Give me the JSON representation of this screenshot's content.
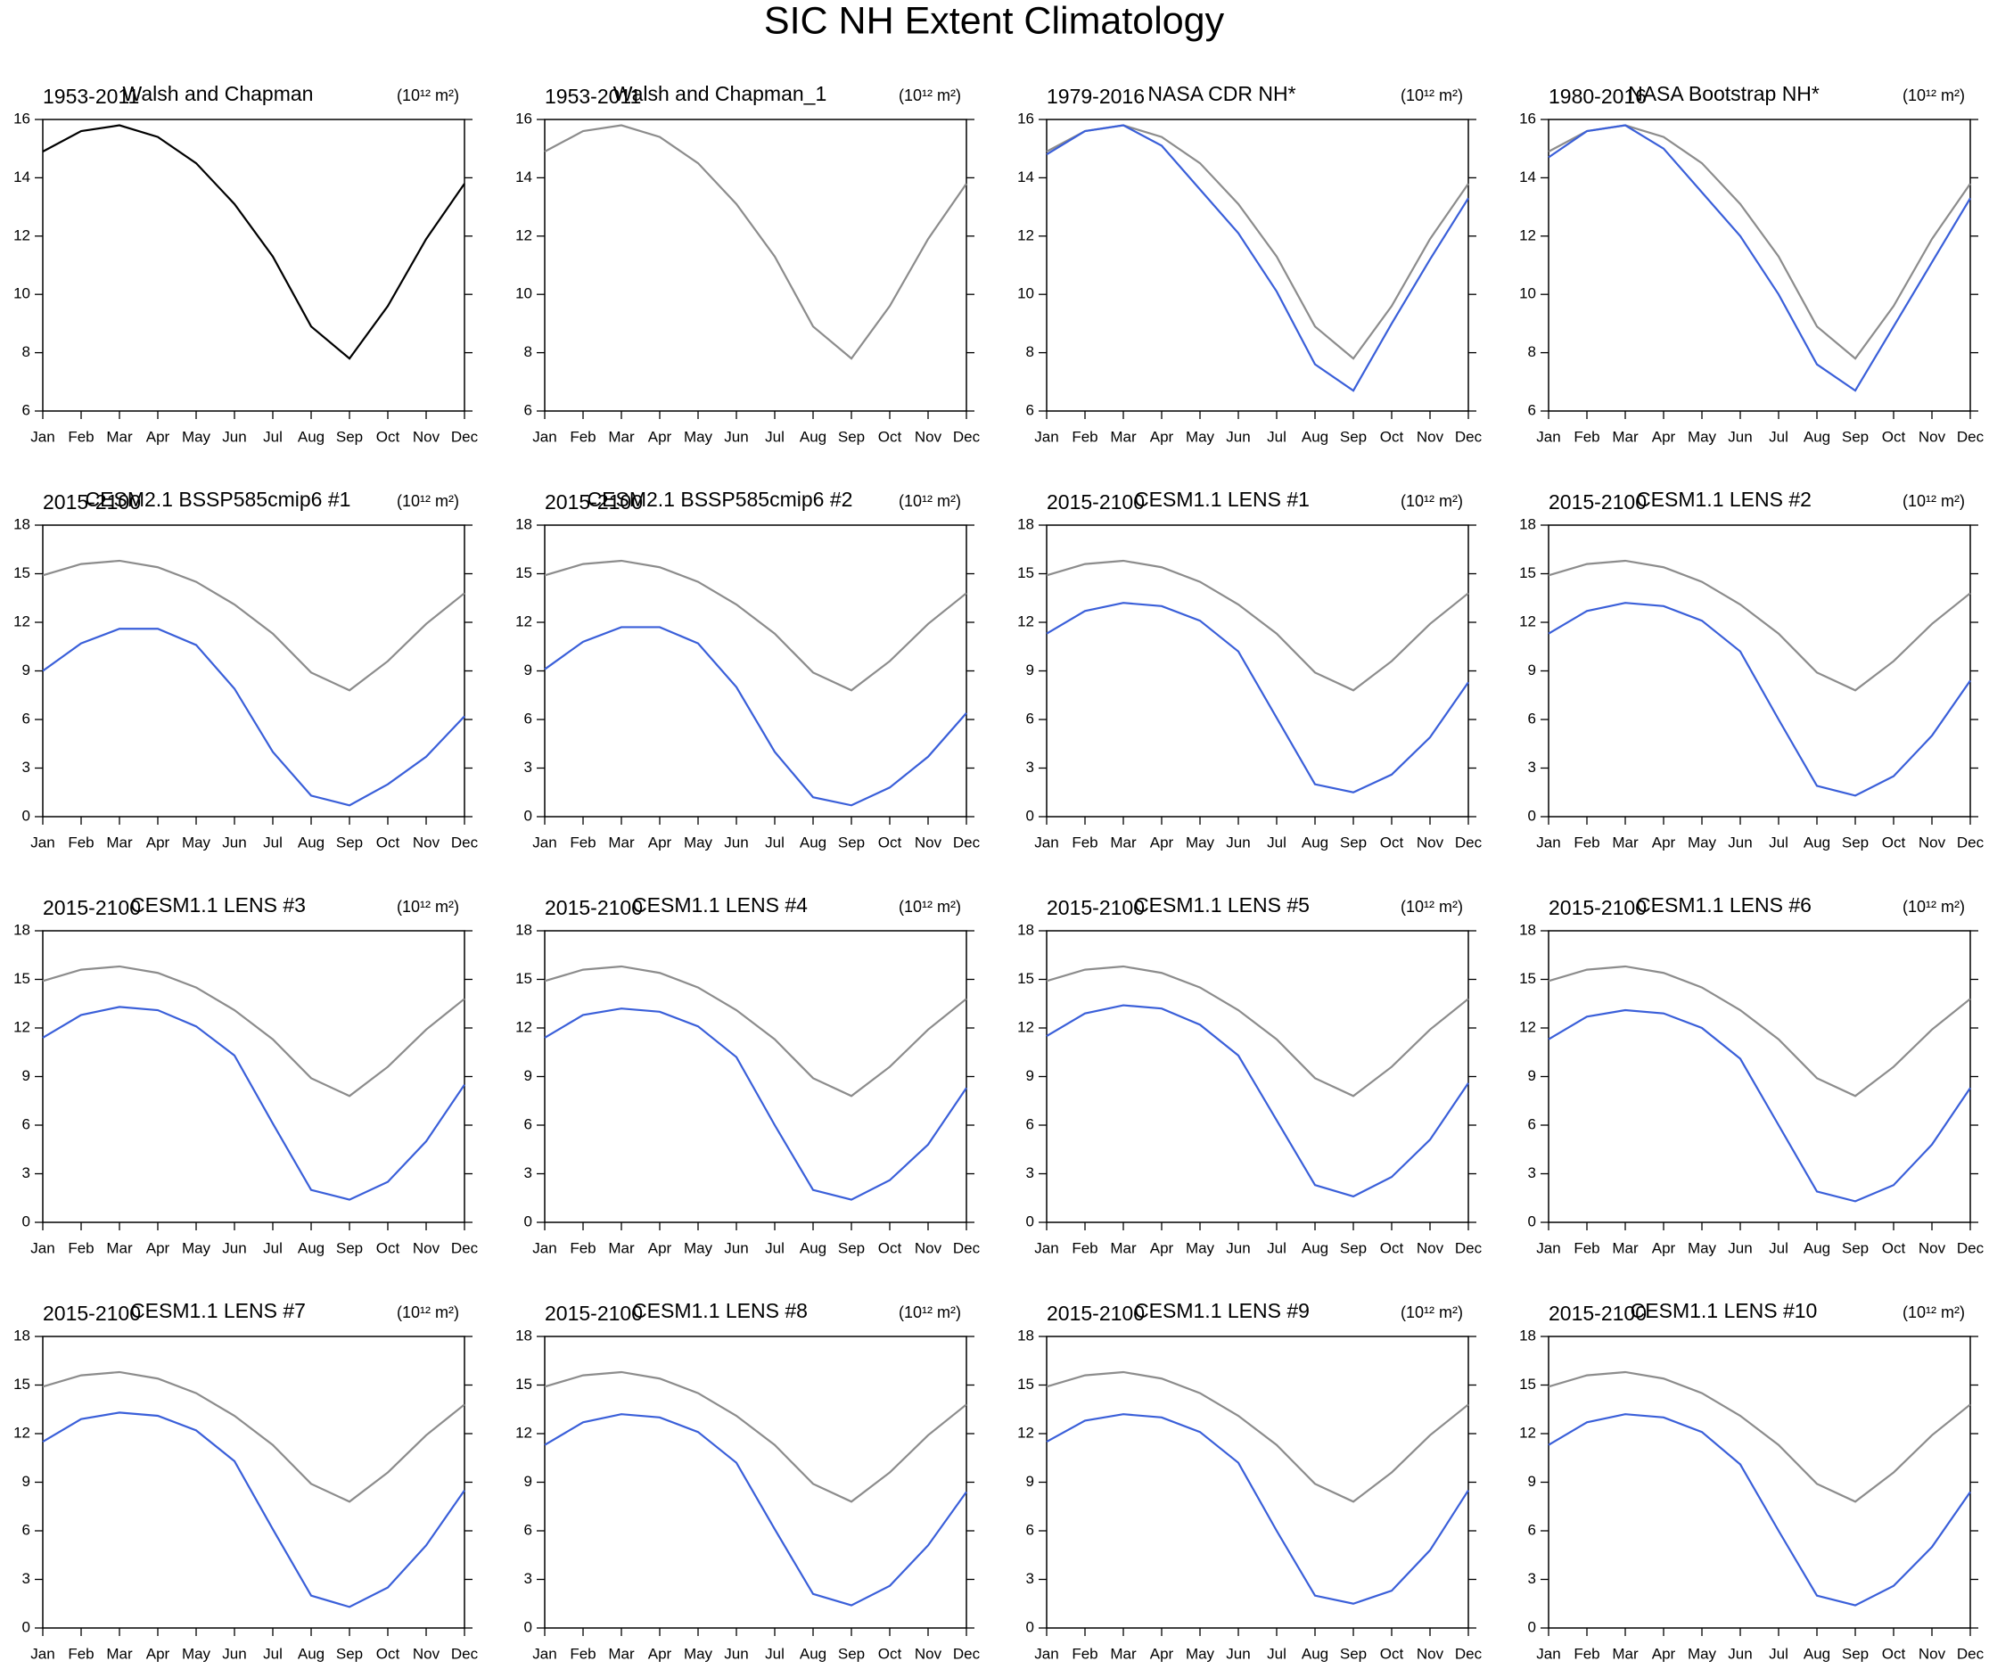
{
  "title": "SIC NH Extent Climatology",
  "chart_data": [
    {
      "type": "line",
      "period": "1953-2011",
      "title": "Walsh and Chapman",
      "units": "(10¹² m²)",
      "categories": [
        "Jan",
        "Feb",
        "Mar",
        "Apr",
        "May",
        "Jun",
        "Jul",
        "Aug",
        "Sep",
        "Oct",
        "Nov",
        "Dec"
      ],
      "ylim": [
        6,
        16
      ],
      "yticks": [
        6,
        8,
        10,
        12,
        14,
        16
      ],
      "series": [
        {
          "color": "#000000",
          "values": [
            14.9,
            15.6,
            15.8,
            15.4,
            14.5,
            13.1,
            11.3,
            8.9,
            7.8,
            9.6,
            11.9,
            13.8
          ]
        }
      ]
    },
    {
      "type": "line",
      "period": "1953-2011",
      "title": "Walsh and Chapman_1",
      "units": "(10¹² m²)",
      "categories": [
        "Jan",
        "Feb",
        "Mar",
        "Apr",
        "May",
        "Jun",
        "Jul",
        "Aug",
        "Sep",
        "Oct",
        "Nov",
        "Dec"
      ],
      "ylim": [
        6,
        16
      ],
      "yticks": [
        6,
        8,
        10,
        12,
        14,
        16
      ],
      "series": [
        {
          "color": "#8c8c8c",
          "values": [
            14.9,
            15.6,
            15.8,
            15.4,
            14.5,
            13.1,
            11.3,
            8.9,
            7.8,
            9.6,
            11.9,
            13.8
          ]
        }
      ]
    },
    {
      "type": "line",
      "period": "1979-2016",
      "title": "NASA CDR NH*",
      "units": "(10¹² m²)",
      "categories": [
        "Jan",
        "Feb",
        "Mar",
        "Apr",
        "May",
        "Jun",
        "Jul",
        "Aug",
        "Sep",
        "Oct",
        "Nov",
        "Dec"
      ],
      "ylim": [
        6,
        16
      ],
      "yticks": [
        6,
        8,
        10,
        12,
        14,
        16
      ],
      "series": [
        {
          "color": "#8c8c8c",
          "values": [
            14.9,
            15.6,
            15.8,
            15.4,
            14.5,
            13.1,
            11.3,
            8.9,
            7.8,
            9.6,
            11.9,
            13.8
          ]
        },
        {
          "color": "#3a5fd9",
          "values": [
            14.8,
            15.6,
            15.8,
            15.1,
            13.6,
            12.1,
            10.1,
            7.6,
            6.7,
            9.0,
            11.2,
            13.3
          ]
        }
      ]
    },
    {
      "type": "line",
      "period": "1980-2016",
      "title": "NASA Bootstrap NH*",
      "units": "(10¹² m²)",
      "categories": [
        "Jan",
        "Feb",
        "Mar",
        "Apr",
        "May",
        "Jun",
        "Jul",
        "Aug",
        "Sep",
        "Oct",
        "Nov",
        "Dec"
      ],
      "ylim": [
        6,
        16
      ],
      "yticks": [
        6,
        8,
        10,
        12,
        14,
        16
      ],
      "series": [
        {
          "color": "#8c8c8c",
          "values": [
            14.9,
            15.6,
            15.8,
            15.4,
            14.5,
            13.1,
            11.3,
            8.9,
            7.8,
            9.6,
            11.9,
            13.8
          ]
        },
        {
          "color": "#3a5fd9",
          "values": [
            14.7,
            15.6,
            15.8,
            15.0,
            13.5,
            12.0,
            10.0,
            7.6,
            6.7,
            8.9,
            11.1,
            13.3
          ]
        }
      ]
    },
    {
      "type": "line",
      "period": "2015-2100",
      "title": "CESM2.1 BSSP585cmip6 #1",
      "units": "(10¹² m²)",
      "categories": [
        "Jan",
        "Feb",
        "Mar",
        "Apr",
        "May",
        "Jun",
        "Jul",
        "Aug",
        "Sep",
        "Oct",
        "Nov",
        "Dec"
      ],
      "ylim": [
        0,
        18
      ],
      "yticks": [
        0,
        3,
        6,
        9,
        12,
        15,
        18
      ],
      "series": [
        {
          "color": "#8c8c8c",
          "values": [
            14.9,
            15.6,
            15.8,
            15.4,
            14.5,
            13.1,
            11.3,
            8.9,
            7.8,
            9.6,
            11.9,
            13.8
          ]
        },
        {
          "color": "#3a5fd9",
          "values": [
            9.0,
            10.7,
            11.6,
            11.6,
            10.6,
            7.9,
            4.0,
            1.3,
            0.7,
            2.0,
            3.7,
            6.2
          ]
        }
      ]
    },
    {
      "type": "line",
      "period": "2015-2100",
      "title": "CESM2.1 BSSP585cmip6 #2",
      "units": "(10¹² m²)",
      "categories": [
        "Jan",
        "Feb",
        "Mar",
        "Apr",
        "May",
        "Jun",
        "Jul",
        "Aug",
        "Sep",
        "Oct",
        "Nov",
        "Dec"
      ],
      "ylim": [
        0,
        18
      ],
      "yticks": [
        0,
        3,
        6,
        9,
        12,
        15,
        18
      ],
      "series": [
        {
          "color": "#8c8c8c",
          "values": [
            14.9,
            15.6,
            15.8,
            15.4,
            14.5,
            13.1,
            11.3,
            8.9,
            7.8,
            9.6,
            11.9,
            13.8
          ]
        },
        {
          "color": "#3a5fd9",
          "values": [
            9.1,
            10.8,
            11.7,
            11.7,
            10.7,
            8.0,
            4.0,
            1.2,
            0.7,
            1.8,
            3.7,
            6.4
          ]
        }
      ]
    },
    {
      "type": "line",
      "period": "2015-2100",
      "title": "CESM1.1 LENS #1",
      "units": "(10¹² m²)",
      "categories": [
        "Jan",
        "Feb",
        "Mar",
        "Apr",
        "May",
        "Jun",
        "Jul",
        "Aug",
        "Sep",
        "Oct",
        "Nov",
        "Dec"
      ],
      "ylim": [
        0,
        18
      ],
      "yticks": [
        0,
        3,
        6,
        9,
        12,
        15,
        18
      ],
      "series": [
        {
          "color": "#8c8c8c",
          "values": [
            14.9,
            15.6,
            15.8,
            15.4,
            14.5,
            13.1,
            11.3,
            8.9,
            7.8,
            9.6,
            11.9,
            13.8
          ]
        },
        {
          "color": "#3a5fd9",
          "values": [
            11.3,
            12.7,
            13.2,
            13.0,
            12.1,
            10.2,
            6.1,
            2.0,
            1.5,
            2.6,
            4.9,
            8.3
          ]
        }
      ]
    },
    {
      "type": "line",
      "period": "2015-2100",
      "title": "CESM1.1 LENS #2",
      "units": "(10¹² m²)",
      "categories": [
        "Jan",
        "Feb",
        "Mar",
        "Apr",
        "May",
        "Jun",
        "Jul",
        "Aug",
        "Sep",
        "Oct",
        "Nov",
        "Dec"
      ],
      "ylim": [
        0,
        18
      ],
      "yticks": [
        0,
        3,
        6,
        9,
        12,
        15,
        18
      ],
      "series": [
        {
          "color": "#8c8c8c",
          "values": [
            14.9,
            15.6,
            15.8,
            15.4,
            14.5,
            13.1,
            11.3,
            8.9,
            7.8,
            9.6,
            11.9,
            13.8
          ]
        },
        {
          "color": "#3a5fd9",
          "values": [
            11.3,
            12.7,
            13.2,
            13.0,
            12.1,
            10.2,
            6.0,
            1.9,
            1.3,
            2.5,
            5.0,
            8.4
          ]
        }
      ]
    },
    {
      "type": "line",
      "period": "2015-2100",
      "title": "CESM1.1 LENS #3",
      "units": "(10¹² m²)",
      "categories": [
        "Jan",
        "Feb",
        "Mar",
        "Apr",
        "May",
        "Jun",
        "Jul",
        "Aug",
        "Sep",
        "Oct",
        "Nov",
        "Dec"
      ],
      "ylim": [
        0,
        18
      ],
      "yticks": [
        0,
        3,
        6,
        9,
        12,
        15,
        18
      ],
      "series": [
        {
          "color": "#8c8c8c",
          "values": [
            14.9,
            15.6,
            15.8,
            15.4,
            14.5,
            13.1,
            11.3,
            8.9,
            7.8,
            9.6,
            11.9,
            13.8
          ]
        },
        {
          "color": "#3a5fd9",
          "values": [
            11.4,
            12.8,
            13.3,
            13.1,
            12.1,
            10.3,
            6.1,
            2.0,
            1.4,
            2.5,
            5.0,
            8.5
          ]
        }
      ]
    },
    {
      "type": "line",
      "period": "2015-2100",
      "title": "CESM1.1 LENS #4",
      "units": "(10¹² m²)",
      "categories": [
        "Jan",
        "Feb",
        "Mar",
        "Apr",
        "May",
        "Jun",
        "Jul",
        "Aug",
        "Sep",
        "Oct",
        "Nov",
        "Dec"
      ],
      "ylim": [
        0,
        18
      ],
      "yticks": [
        0,
        3,
        6,
        9,
        12,
        15,
        18
      ],
      "series": [
        {
          "color": "#8c8c8c",
          "values": [
            14.9,
            15.6,
            15.8,
            15.4,
            14.5,
            13.1,
            11.3,
            8.9,
            7.8,
            9.6,
            11.9,
            13.8
          ]
        },
        {
          "color": "#3a5fd9",
          "values": [
            11.4,
            12.8,
            13.2,
            13.0,
            12.1,
            10.2,
            6.0,
            2.0,
            1.4,
            2.6,
            4.8,
            8.3
          ]
        }
      ]
    },
    {
      "type": "line",
      "period": "2015-2100",
      "title": "CESM1.1 LENS #5",
      "units": "(10¹² m²)",
      "categories": [
        "Jan",
        "Feb",
        "Mar",
        "Apr",
        "May",
        "Jun",
        "Jul",
        "Aug",
        "Sep",
        "Oct",
        "Nov",
        "Dec"
      ],
      "ylim": [
        0,
        18
      ],
      "yticks": [
        0,
        3,
        6,
        9,
        12,
        15,
        18
      ],
      "series": [
        {
          "color": "#8c8c8c",
          "values": [
            14.9,
            15.6,
            15.8,
            15.4,
            14.5,
            13.1,
            11.3,
            8.9,
            7.8,
            9.6,
            11.9,
            13.8
          ]
        },
        {
          "color": "#3a5fd9",
          "values": [
            11.5,
            12.9,
            13.4,
            13.2,
            12.2,
            10.3,
            6.3,
            2.3,
            1.6,
            2.8,
            5.1,
            8.6
          ]
        }
      ]
    },
    {
      "type": "line",
      "period": "2015-2100",
      "title": "CESM1.1 LENS #6",
      "units": "(10¹² m²)",
      "categories": [
        "Jan",
        "Feb",
        "Mar",
        "Apr",
        "May",
        "Jun",
        "Jul",
        "Aug",
        "Sep",
        "Oct",
        "Nov",
        "Dec"
      ],
      "ylim": [
        0,
        18
      ],
      "yticks": [
        0,
        3,
        6,
        9,
        12,
        15,
        18
      ],
      "series": [
        {
          "color": "#8c8c8c",
          "values": [
            14.9,
            15.6,
            15.8,
            15.4,
            14.5,
            13.1,
            11.3,
            8.9,
            7.8,
            9.6,
            11.9,
            13.8
          ]
        },
        {
          "color": "#3a5fd9",
          "values": [
            11.3,
            12.7,
            13.1,
            12.9,
            12.0,
            10.1,
            6.0,
            1.9,
            1.3,
            2.3,
            4.8,
            8.3
          ]
        }
      ]
    },
    {
      "type": "line",
      "period": "2015-2100",
      "title": "CESM1.1 LENS #7",
      "units": "(10¹² m²)",
      "categories": [
        "Jan",
        "Feb",
        "Mar",
        "Apr",
        "May",
        "Jun",
        "Jul",
        "Aug",
        "Sep",
        "Oct",
        "Nov",
        "Dec"
      ],
      "ylim": [
        0,
        18
      ],
      "yticks": [
        0,
        3,
        6,
        9,
        12,
        15,
        18
      ],
      "series": [
        {
          "color": "#8c8c8c",
          "values": [
            14.9,
            15.6,
            15.8,
            15.4,
            14.5,
            13.1,
            11.3,
            8.9,
            7.8,
            9.6,
            11.9,
            13.8
          ]
        },
        {
          "color": "#3a5fd9",
          "values": [
            11.5,
            12.9,
            13.3,
            13.1,
            12.2,
            10.3,
            6.1,
            2.0,
            1.3,
            2.5,
            5.1,
            8.5
          ]
        }
      ]
    },
    {
      "type": "line",
      "period": "2015-2100",
      "title": "CESM1.1 LENS #8",
      "units": "(10¹² m²)",
      "categories": [
        "Jan",
        "Feb",
        "Mar",
        "Apr",
        "May",
        "Jun",
        "Jul",
        "Aug",
        "Sep",
        "Oct",
        "Nov",
        "Dec"
      ],
      "ylim": [
        0,
        18
      ],
      "yticks": [
        0,
        3,
        6,
        9,
        12,
        15,
        18
      ],
      "series": [
        {
          "color": "#8c8c8c",
          "values": [
            14.9,
            15.6,
            15.8,
            15.4,
            14.5,
            13.1,
            11.3,
            8.9,
            7.8,
            9.6,
            11.9,
            13.8
          ]
        },
        {
          "color": "#3a5fd9",
          "values": [
            11.3,
            12.7,
            13.2,
            13.0,
            12.1,
            10.2,
            6.1,
            2.1,
            1.4,
            2.6,
            5.1,
            8.4
          ]
        }
      ]
    },
    {
      "type": "line",
      "period": "2015-2100",
      "title": "CESM1.1 LENS #9",
      "units": "(10¹² m²)",
      "categories": [
        "Jan",
        "Feb",
        "Mar",
        "Apr",
        "May",
        "Jun",
        "Jul",
        "Aug",
        "Sep",
        "Oct",
        "Nov",
        "Dec"
      ],
      "ylim": [
        0,
        18
      ],
      "yticks": [
        0,
        3,
        6,
        9,
        12,
        15,
        18
      ],
      "series": [
        {
          "color": "#8c8c8c",
          "values": [
            14.9,
            15.6,
            15.8,
            15.4,
            14.5,
            13.1,
            11.3,
            8.9,
            7.8,
            9.6,
            11.9,
            13.8
          ]
        },
        {
          "color": "#3a5fd9",
          "values": [
            11.5,
            12.8,
            13.2,
            13.0,
            12.1,
            10.2,
            6.0,
            2.0,
            1.5,
            2.3,
            4.8,
            8.5
          ]
        }
      ]
    },
    {
      "type": "line",
      "period": "2015-2100",
      "title": "CESM1.1 LENS #10",
      "units": "(10¹² m²)",
      "categories": [
        "Jan",
        "Feb",
        "Mar",
        "Apr",
        "May",
        "Jun",
        "Jul",
        "Aug",
        "Sep",
        "Oct",
        "Nov",
        "Dec"
      ],
      "ylim": [
        0,
        18
      ],
      "yticks": [
        0,
        3,
        6,
        9,
        12,
        15,
        18
      ],
      "series": [
        {
          "color": "#8c8c8c",
          "values": [
            14.9,
            15.6,
            15.8,
            15.4,
            14.5,
            13.1,
            11.3,
            8.9,
            7.8,
            9.6,
            11.9,
            13.8
          ]
        },
        {
          "color": "#3a5fd9",
          "values": [
            11.3,
            12.7,
            13.2,
            13.0,
            12.1,
            10.1,
            6.0,
            2.0,
            1.4,
            2.6,
            5.0,
            8.4
          ]
        }
      ]
    }
  ]
}
